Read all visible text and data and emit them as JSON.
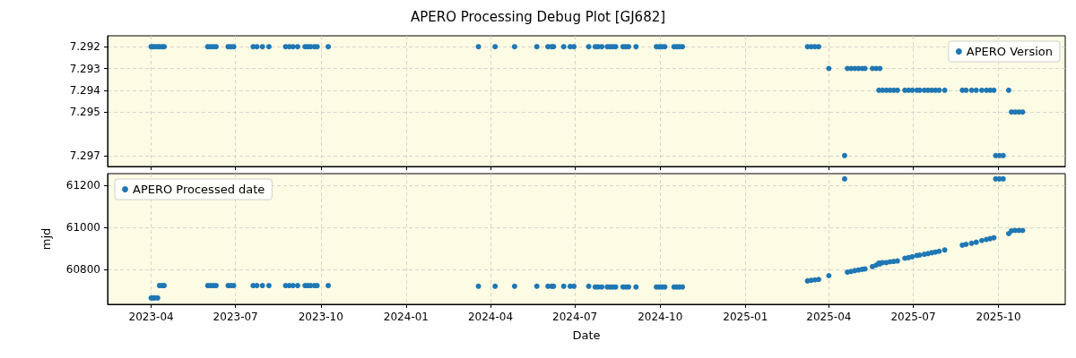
{
  "chart_data": [
    {
      "type": "scatter",
      "title": "APERO Processing Debug Plot [GJ682]",
      "marker": "circle",
      "grid": true,
      "legend": "top right",
      "tick_labels": "y",
      "xlim": [
        "2023-02-13",
        "2025-12-12"
      ],
      "xticks": [
        {
          "value": "2023-04-01",
          "label": null
        },
        {
          "value": "2023-07-01",
          "label": null
        },
        {
          "value": "2023-10-01",
          "label": null
        },
        {
          "value": "2024-01-01",
          "label": null
        },
        {
          "value": "2024-04-01",
          "label": null
        },
        {
          "value": "2024-07-01",
          "label": null
        },
        {
          "value": "2024-10-01",
          "label": null
        },
        {
          "value": "2025-01-01",
          "label": null
        },
        {
          "value": "2025-04-01",
          "label": null
        },
        {
          "value": "2025-07-01",
          "label": null
        },
        {
          "value": "2025-10-01",
          "label": null
        }
      ],
      "ylim": [
        7.2975,
        7.2915
      ],
      "yticks": [
        7.292,
        7.293,
        7.294,
        7.295,
        7.297
      ],
      "x": [
        "2023-04-01",
        "2023-04-03",
        "2023-04-05",
        "2023-04-08",
        "2023-04-10",
        "2023-04-13",
        "2023-04-15",
        "2023-06-01",
        "2023-06-04",
        "2023-06-07",
        "2023-06-10",
        "2023-06-23",
        "2023-06-26",
        "2023-06-29",
        "2023-07-20",
        "2023-07-24",
        "2023-07-30",
        "2023-08-06",
        "2023-08-24",
        "2023-08-28",
        "2023-09-01",
        "2023-09-06",
        "2023-09-14",
        "2023-09-17",
        "2023-09-20",
        "2023-09-24",
        "2023-09-27",
        "2023-10-09",
        "2024-03-19",
        "2024-04-06",
        "2024-04-27",
        "2024-05-21",
        "2024-06-02",
        "2024-06-06",
        "2024-06-08",
        "2024-06-19",
        "2024-06-26",
        "2024-06-30",
        "2024-07-16",
        "2024-07-23",
        "2024-07-26",
        "2024-07-30",
        "2024-08-05",
        "2024-08-08",
        "2024-08-11",
        "2024-08-14",
        "2024-08-22",
        "2024-08-25",
        "2024-08-28",
        "2024-09-05",
        "2024-09-27",
        "2024-09-30",
        "2024-10-03",
        "2024-10-06",
        "2024-10-16",
        "2024-10-19",
        "2024-10-22",
        "2024-10-25",
        "2025-03-09",
        "2025-03-13",
        "2025-03-17",
        "2025-03-21",
        "2025-04-01",
        "2025-04-18",
        "2025-04-21",
        "2025-04-25",
        "2025-04-29",
        "2025-05-03",
        "2025-05-07",
        "2025-05-10",
        "2025-05-18",
        "2025-05-22",
        "2025-05-26",
        "2025-05-25",
        "2025-05-29",
        "2025-06-02",
        "2025-06-06",
        "2025-06-10",
        "2025-06-14",
        "2025-06-22",
        "2025-06-26",
        "2025-06-30",
        "2025-07-05",
        "2025-07-08",
        "2025-07-13",
        "2025-07-17",
        "2025-07-21",
        "2025-07-25",
        "2025-07-29",
        "2025-08-04",
        "2025-08-23",
        "2025-08-27",
        "2025-09-02",
        "2025-09-07",
        "2025-09-13",
        "2025-09-18",
        "2025-09-22",
        "2025-09-26",
        "2025-09-28",
        "2025-10-02",
        "2025-10-06",
        "2025-10-12",
        "2025-10-15",
        "2025-10-19",
        "2025-10-23",
        "2025-10-27"
      ],
      "series": [
        {
          "name": "APERO Version",
          "color": "#1f77b4",
          "values": [
            7.292,
            7.292,
            7.292,
            7.292,
            7.292,
            7.292,
            7.292,
            7.292,
            7.292,
            7.292,
            7.292,
            7.292,
            7.292,
            7.292,
            7.292,
            7.292,
            7.292,
            7.292,
            7.292,
            7.292,
            7.292,
            7.292,
            7.292,
            7.292,
            7.292,
            7.292,
            7.292,
            7.292,
            7.292,
            7.292,
            7.292,
            7.292,
            7.292,
            7.292,
            7.292,
            7.292,
            7.292,
            7.292,
            7.292,
            7.292,
            7.292,
            7.292,
            7.292,
            7.292,
            7.292,
            7.292,
            7.292,
            7.292,
            7.292,
            7.292,
            7.292,
            7.292,
            7.292,
            7.292,
            7.292,
            7.292,
            7.292,
            7.292,
            7.292,
            7.292,
            7.292,
            7.292,
            7.293,
            7.297,
            7.293,
            7.293,
            7.293,
            7.293,
            7.293,
            7.293,
            7.293,
            7.293,
            7.293,
            7.294,
            7.294,
            7.294,
            7.294,
            7.294,
            7.294,
            7.294,
            7.294,
            7.294,
            7.294,
            7.294,
            7.294,
            7.294,
            7.294,
            7.294,
            7.294,
            7.294,
            7.294,
            7.294,
            7.294,
            7.294,
            7.294,
            7.294,
            7.294,
            7.294,
            7.297,
            7.297,
            7.297,
            7.294,
            7.295,
            7.295,
            7.295,
            7.295
          ]
        }
      ]
    },
    {
      "type": "scatter",
      "xlabel": "Date",
      "ylabel": "mjd",
      "marker": "circle",
      "grid": true,
      "legend": "top left",
      "xlim": [
        "2023-02-13",
        "2025-12-12"
      ],
      "xticks": [
        {
          "value": "2023-04-01",
          "label": "2023-04"
        },
        {
          "value": "2023-07-01",
          "label": "2023-07"
        },
        {
          "value": "2023-10-01",
          "label": "2023-10"
        },
        {
          "value": "2024-01-01",
          "label": "2024-01"
        },
        {
          "value": "2024-04-01",
          "label": "2024-04"
        },
        {
          "value": "2024-07-01",
          "label": "2024-07"
        },
        {
          "value": "2024-10-01",
          "label": "2024-10"
        },
        {
          "value": "2025-01-01",
          "label": "2025-01"
        },
        {
          "value": "2025-04-01",
          "label": "2025-04"
        },
        {
          "value": "2025-07-01",
          "label": "2025-07"
        },
        {
          "value": "2025-10-01",
          "label": "2025-10"
        }
      ],
      "ylim": [
        60634,
        61255
      ],
      "yticks": [
        60800,
        61000,
        61200
      ],
      "x": [
        "2023-04-01",
        "2023-04-03",
        "2023-04-05",
        "2023-04-08",
        "2023-04-10",
        "2023-04-13",
        "2023-04-15",
        "2023-06-01",
        "2023-06-04",
        "2023-06-07",
        "2023-06-10",
        "2023-06-23",
        "2023-06-26",
        "2023-06-29",
        "2023-07-20",
        "2023-07-24",
        "2023-07-30",
        "2023-08-06",
        "2023-08-24",
        "2023-08-28",
        "2023-09-01",
        "2023-09-06",
        "2023-09-14",
        "2023-09-17",
        "2023-09-20",
        "2023-09-24",
        "2023-09-27",
        "2023-10-09",
        "2024-03-19",
        "2024-04-06",
        "2024-04-27",
        "2024-05-21",
        "2024-06-02",
        "2024-06-06",
        "2024-06-08",
        "2024-06-19",
        "2024-06-26",
        "2024-06-30",
        "2024-07-16",
        "2024-07-23",
        "2024-07-26",
        "2024-07-30",
        "2024-08-05",
        "2024-08-08",
        "2024-08-11",
        "2024-08-14",
        "2024-08-22",
        "2024-08-25",
        "2024-08-28",
        "2024-09-05",
        "2024-09-27",
        "2024-09-30",
        "2024-10-03",
        "2024-10-06",
        "2024-10-16",
        "2024-10-19",
        "2024-10-22",
        "2024-10-25",
        "2025-03-09",
        "2025-03-13",
        "2025-03-17",
        "2025-03-21",
        "2025-04-01",
        "2025-04-18",
        "2025-04-21",
        "2025-04-25",
        "2025-04-29",
        "2025-05-03",
        "2025-05-07",
        "2025-05-10",
        "2025-05-18",
        "2025-05-22",
        "2025-05-26",
        "2025-05-25",
        "2025-05-29",
        "2025-06-02",
        "2025-06-06",
        "2025-06-10",
        "2025-06-14",
        "2025-06-22",
        "2025-06-26",
        "2025-06-30",
        "2025-07-05",
        "2025-07-08",
        "2025-07-13",
        "2025-07-17",
        "2025-07-21",
        "2025-07-25",
        "2025-07-29",
        "2025-08-04",
        "2025-08-23",
        "2025-08-27",
        "2025-09-02",
        "2025-09-07",
        "2025-09-13",
        "2025-09-18",
        "2025-09-22",
        "2025-09-26",
        "2025-09-28",
        "2025-10-02",
        "2025-10-06",
        "2025-10-12",
        "2025-10-15",
        "2025-10-19",
        "2025-10-23",
        "2025-10-27"
      ],
      "series": [
        {
          "name": "APERO Processed date",
          "color": "#1f77b4",
          "values": [
            60664,
            60664,
            60664,
            60664,
            60723,
            60723,
            60723,
            60723,
            60723,
            60723,
            60723,
            60723,
            60723,
            60723,
            60723,
            60723,
            60723,
            60723,
            60723,
            60723,
            60723,
            60723,
            60723,
            60723,
            60723,
            60723,
            60723,
            60723,
            60720,
            60720,
            60720,
            60720,
            60720,
            60720,
            60720,
            60720,
            60720,
            60720,
            60720,
            60716,
            60716,
            60716,
            60716,
            60716,
            60716,
            60716,
            60716,
            60716,
            60716,
            60716,
            60716,
            60716,
            60716,
            60716,
            60716,
            60716,
            60716,
            60716,
            60745,
            60748,
            60750,
            60752,
            60770,
            61230,
            60787,
            60790,
            60794,
            60797,
            60800,
            60802,
            60813,
            60820,
            60826,
            60830,
            60832,
            60832,
            60836,
            60838,
            60840,
            60853,
            60856,
            60860,
            60866,
            60868,
            60872,
            60875,
            60879,
            60882,
            60886,
            60892,
            60915,
            60919,
            60924,
            60929,
            60937,
            60942,
            60946,
            60950,
            61230,
            61230,
            61230,
            60970,
            60983,
            60985,
            60985,
            60985
          ]
        }
      ]
    }
  ]
}
